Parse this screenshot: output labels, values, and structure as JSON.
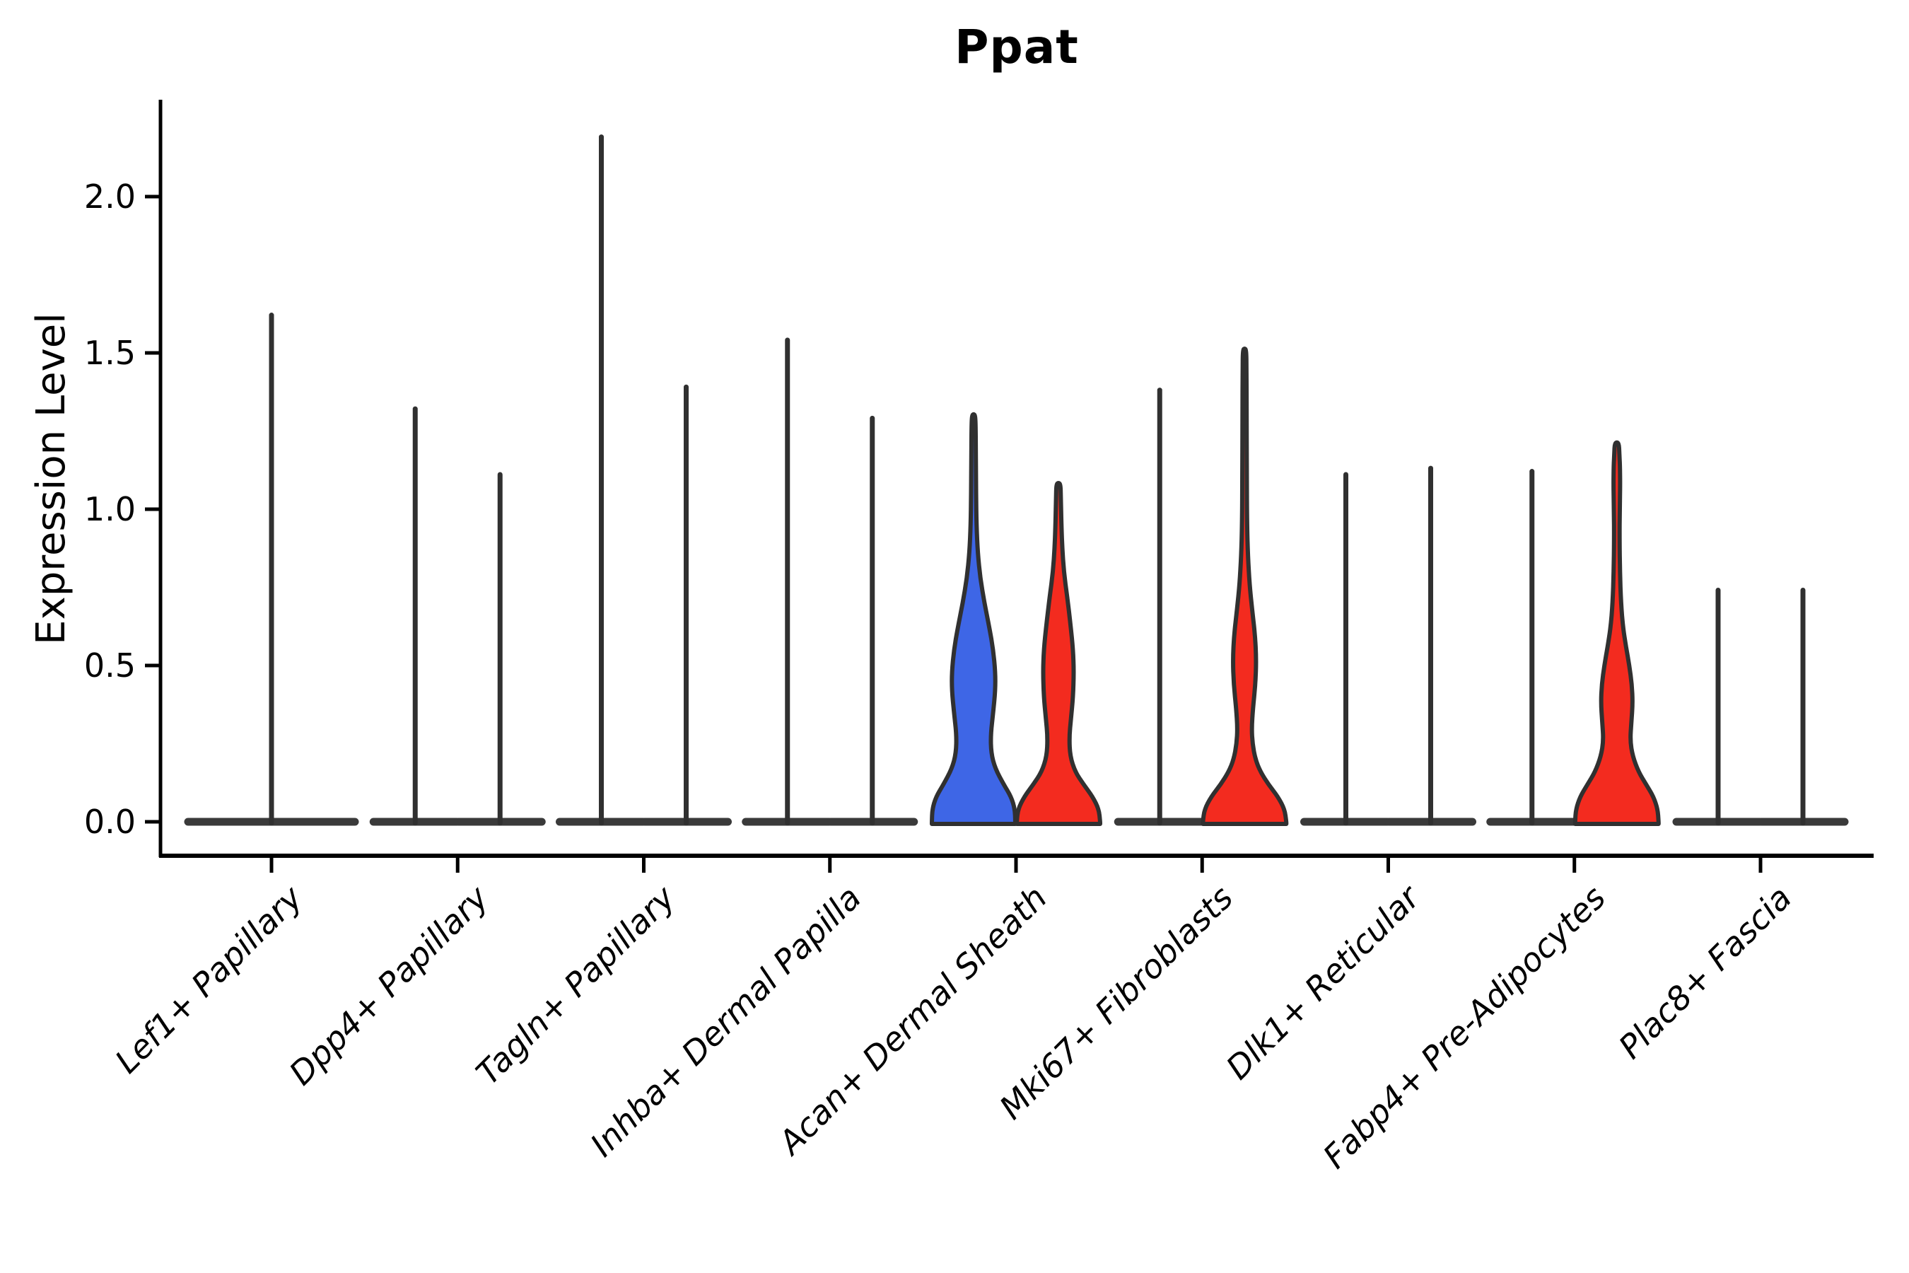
{
  "chart_data": {
    "type": "violin",
    "title": "Ppat",
    "xlabel": "",
    "ylabel": "Expression Level",
    "y_ticks": [
      "0.0",
      "0.5",
      "1.0",
      "1.5",
      "2.0"
    ],
    "y_tick_values": [
      0.0,
      0.5,
      1.0,
      1.5,
      2.0
    ],
    "ylim": [
      -0.11,
      2.31
    ],
    "grid": false,
    "legend": "none",
    "categories": [
      "Lef1+ Papillary",
      "Dpp4+ Papillary",
      "Tagln+ Papillary",
      "Inhba+ Dermal Papilla",
      "Acan+ Dermal Sheath",
      "Mki67+ Fibroblasts",
      "Dlk1+ Reticular",
      "Fabp4+ Pre-Adipocytes",
      "Plac8+ Fascia"
    ],
    "colors": {
      "blue_fill": "#3E66E6",
      "red_fill": "#F32B1F",
      "outline": "#303030",
      "baseline": "#3a3a3a",
      "axis": "#000000"
    },
    "violins": [
      {
        "category_index": 0,
        "category": "Lef1+ Papillary",
        "placement": "center",
        "shape": "spike",
        "max": 1.63,
        "fill": "none"
      },
      {
        "category_index": 1,
        "category": "Dpp4+ Papillary",
        "placement": "left",
        "shape": "spike",
        "max": 1.33,
        "fill": "none"
      },
      {
        "category_index": 1,
        "category": "Dpp4+ Papillary",
        "placement": "right",
        "shape": "spike",
        "max": 1.12,
        "fill": "none"
      },
      {
        "category_index": 2,
        "category": "Tagln+ Papillary",
        "placement": "left",
        "shape": "spike",
        "max": 2.2,
        "fill": "none"
      },
      {
        "category_index": 2,
        "category": "Tagln+ Papillary",
        "placement": "right",
        "shape": "spike",
        "max": 1.4,
        "fill": "none"
      },
      {
        "category_index": 3,
        "category": "Inhba+ Dermal Papilla",
        "placement": "left",
        "shape": "spike",
        "max": 1.55,
        "fill": "none"
      },
      {
        "category_index": 3,
        "category": "Inhba+ Dermal Papilla",
        "placement": "right",
        "shape": "spike",
        "max": 1.3,
        "fill": "none"
      },
      {
        "category_index": 4,
        "category": "Acan+ Dermal Sheath",
        "placement": "left",
        "shape": "curved",
        "max": 1.3,
        "fill": "#3E66E6",
        "profile": [
          [
            0.0,
            1.0
          ],
          [
            0.04,
            0.99
          ],
          [
            0.08,
            0.9
          ],
          [
            0.12,
            0.72
          ],
          [
            0.17,
            0.52
          ],
          [
            0.22,
            0.42
          ],
          [
            0.28,
            0.41
          ],
          [
            0.35,
            0.47
          ],
          [
            0.42,
            0.52
          ],
          [
            0.48,
            0.52
          ],
          [
            0.55,
            0.47
          ],
          [
            0.62,
            0.38
          ],
          [
            0.7,
            0.26
          ],
          [
            0.78,
            0.16
          ],
          [
            0.86,
            0.1
          ],
          [
            0.95,
            0.07
          ],
          [
            1.05,
            0.06
          ],
          [
            1.15,
            0.055
          ],
          [
            1.25,
            0.05
          ],
          [
            1.3,
            0.04
          ]
        ]
      },
      {
        "category_index": 4,
        "category": "Acan+ Dermal Sheath",
        "placement": "right",
        "shape": "curved",
        "max": 1.08,
        "fill": "#F32B1F",
        "profile": [
          [
            0.0,
            1.0
          ],
          [
            0.04,
            0.97
          ],
          [
            0.08,
            0.82
          ],
          [
            0.12,
            0.6
          ],
          [
            0.16,
            0.4
          ],
          [
            0.21,
            0.28
          ],
          [
            0.27,
            0.26
          ],
          [
            0.33,
            0.3
          ],
          [
            0.4,
            0.35
          ],
          [
            0.48,
            0.37
          ],
          [
            0.55,
            0.35
          ],
          [
            0.63,
            0.29
          ],
          [
            0.72,
            0.21
          ],
          [
            0.8,
            0.13
          ],
          [
            0.88,
            0.09
          ],
          [
            0.96,
            0.07
          ],
          [
            1.03,
            0.06
          ],
          [
            1.08,
            0.05
          ]
        ]
      },
      {
        "category_index": 5,
        "category": "Mki67+ Fibroblasts",
        "placement": "left",
        "shape": "spike",
        "max": 1.39,
        "fill": "none"
      },
      {
        "category_index": 5,
        "category": "Mki67+ Fibroblasts",
        "placement": "right",
        "shape": "curved",
        "max": 1.51,
        "fill": "#F32B1F",
        "profile": [
          [
            0.0,
            1.0
          ],
          [
            0.04,
            0.96
          ],
          [
            0.08,
            0.8
          ],
          [
            0.12,
            0.57
          ],
          [
            0.16,
            0.38
          ],
          [
            0.2,
            0.26
          ],
          [
            0.25,
            0.19
          ],
          [
            0.3,
            0.17
          ],
          [
            0.36,
            0.2
          ],
          [
            0.44,
            0.26
          ],
          [
            0.52,
            0.28
          ],
          [
            0.6,
            0.25
          ],
          [
            0.68,
            0.18
          ],
          [
            0.76,
            0.12
          ],
          [
            0.85,
            0.08
          ],
          [
            0.95,
            0.06
          ],
          [
            1.1,
            0.055
          ],
          [
            1.3,
            0.05
          ],
          [
            1.45,
            0.045
          ],
          [
            1.51,
            0.04
          ]
        ]
      },
      {
        "category_index": 6,
        "category": "Dlk1+ Reticular",
        "placement": "left",
        "shape": "spike",
        "max": 1.12,
        "fill": "none"
      },
      {
        "category_index": 6,
        "category": "Dlk1+ Reticular",
        "placement": "right",
        "shape": "spike",
        "max": 1.14,
        "fill": "none"
      },
      {
        "category_index": 7,
        "category": "Fabp4+ Pre-Adipocytes",
        "placement": "left",
        "shape": "spike",
        "max": 1.13,
        "fill": "none"
      },
      {
        "category_index": 7,
        "category": "Fabp4+ Pre-Adipocytes",
        "placement": "right",
        "shape": "curved",
        "max": 1.21,
        "fill": "#F32B1F",
        "profile": [
          [
            0.0,
            1.0
          ],
          [
            0.04,
            0.98
          ],
          [
            0.08,
            0.88
          ],
          [
            0.12,
            0.7
          ],
          [
            0.16,
            0.52
          ],
          [
            0.21,
            0.38
          ],
          [
            0.26,
            0.32
          ],
          [
            0.32,
            0.35
          ],
          [
            0.38,
            0.38
          ],
          [
            0.44,
            0.36
          ],
          [
            0.5,
            0.3
          ],
          [
            0.56,
            0.22
          ],
          [
            0.62,
            0.15
          ],
          [
            0.7,
            0.1
          ],
          [
            0.8,
            0.075
          ],
          [
            0.9,
            0.065
          ],
          [
            1.0,
            0.07
          ],
          [
            1.08,
            0.08
          ],
          [
            1.14,
            0.075
          ],
          [
            1.18,
            0.06
          ],
          [
            1.21,
            0.05
          ]
        ]
      },
      {
        "category_index": 8,
        "category": "Plac8+ Fascia",
        "placement": "left",
        "shape": "spike",
        "max": 0.75,
        "fill": "none"
      },
      {
        "category_index": 8,
        "category": "Plac8+ Fascia",
        "placement": "right",
        "shape": "spike",
        "max": 0.75,
        "fill": "none"
      }
    ]
  }
}
